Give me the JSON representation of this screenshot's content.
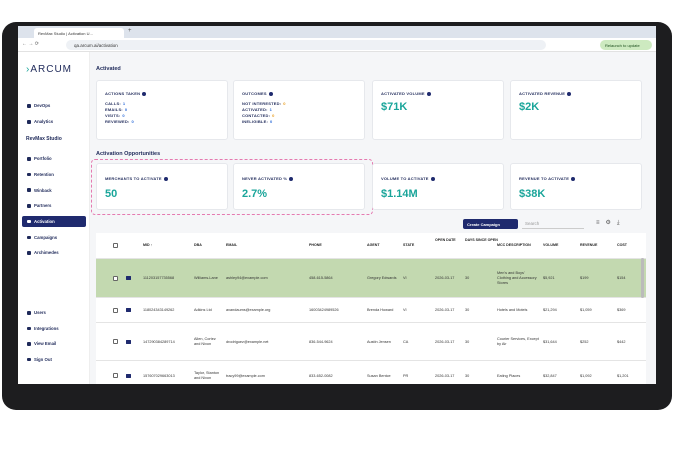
{
  "browser": {
    "tab_title": "RevMax Studio | Activation U...",
    "url": "qa.arcum.ai/activation",
    "relaunch": "Relaunch to update"
  },
  "sidebar": {
    "logo": "ARCUM",
    "nav_top": [
      "DevOps",
      "Analytics"
    ],
    "section": "RevMax Studio",
    "nav": [
      "Portfolio",
      "Retention",
      "Winback",
      "Partners",
      "Activation",
      "Campaigns",
      "Archimedes"
    ],
    "nav_bottom": [
      "Users",
      "Integrations",
      "View Email",
      "Sign Out"
    ]
  },
  "page": {
    "heading": "Activated",
    "summary_cards": [
      {
        "label": "ACTIONS TAKEN",
        "lines": [
          {
            "label": "CALLS:",
            "value": "1"
          },
          {
            "label": "EMAILS:",
            "value": "0"
          },
          {
            "label": "VISITS:",
            "value": "0"
          },
          {
            "label": "REVIEWED:",
            "value": "0"
          }
        ]
      },
      {
        "label": "OUTCOMES",
        "lines": [
          {
            "label": "NOT INTERESTED:",
            "value": "0"
          },
          {
            "label": "ACTIVATED:",
            "value": "1"
          },
          {
            "label": "CONTACTED:",
            "value": "0"
          },
          {
            "label": "INELIGIBLE:",
            "value": "0"
          }
        ]
      },
      {
        "label": "ACTIVATED VOLUME",
        "value": "$71K"
      },
      {
        "label": "ACTIVATED REVENUE",
        "value": "$2K"
      }
    ],
    "opportunities_heading": "Activation Opportunities",
    "opportunity_cards": [
      {
        "label": "MERCHANTS TO ACTIVATE",
        "value": "50"
      },
      {
        "label": "NEVER ACTIVATED %",
        "value": "2.7%"
      },
      {
        "label": "VOLUME TO ACTIVATE",
        "value": "$1.14M"
      },
      {
        "label": "REVENUE TO ACTIVATE",
        "value": "$38K"
      }
    ],
    "create_button": "Create Campaign",
    "search_placeholder": "Search"
  },
  "table": {
    "columns": [
      "MID ↑",
      "DBA",
      "EMAIL",
      "PHONE",
      "AGENT",
      "STATE",
      "OPEN DATE",
      "DAYS SINCE OPEN",
      "MCC DESCRIPTION",
      "VOLUME",
      "REVENUE",
      "COST"
    ],
    "rows": [
      [
        "111203157735568",
        "Williams-Lane",
        "ashley94@example.com",
        "458-615-5864",
        "Gregory Edwards",
        "VI",
        "2026-03-17",
        "30",
        "Men's and Boys' Clothing and Accessory Stores",
        "$5,921",
        "$199",
        "$154"
      ],
      [
        "118024343149262",
        "Adkins Ltd",
        "avandaums@example.org",
        "16003424989526",
        "Brenda Howard",
        "VI",
        "2026-03-17",
        "30",
        "Hotels and Motels",
        "$21,294",
        "$1,059",
        "$369"
      ],
      [
        "147290384289714",
        "Allen, Cortez and Nixon",
        "drodriguez@example.net",
        "836-544-9624",
        "Austin Jensen",
        "CA",
        "2026-03-17",
        "30",
        "Courier Services, Except by Air",
        "$31,644",
        "$252",
        "$442"
      ],
      [
        "157607029663013",
        "Taylor, Stanton and Nixon",
        "tracy99@example.com",
        "833-652-0082",
        "Susan Bentce",
        "PR",
        "2026-03-17",
        "30",
        "Eating Places",
        "$32,847",
        "$1,092",
        "$1,201"
      ]
    ]
  }
}
